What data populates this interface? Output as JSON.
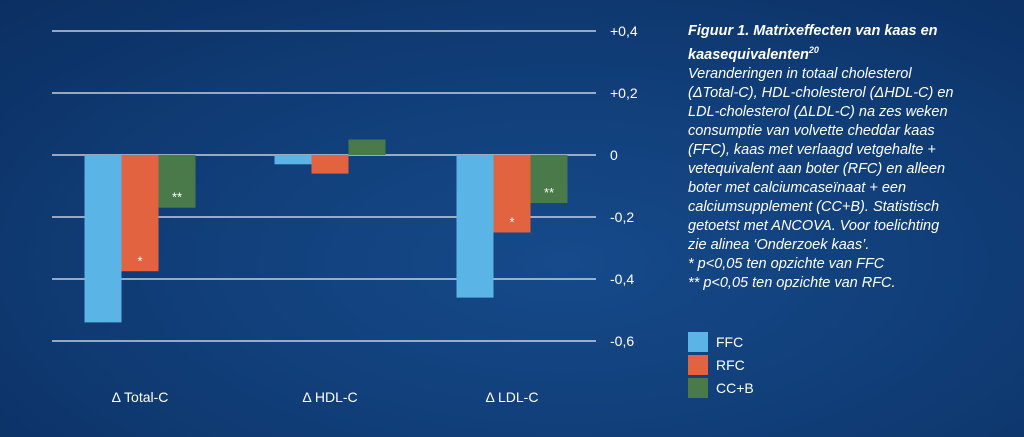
{
  "chart_data": {
    "type": "bar",
    "categories": [
      "Δ Total-C",
      "Δ HDL-C",
      "Δ LDL-C"
    ],
    "series": [
      {
        "name": "FFC",
        "color": "#5ab4e6",
        "values": [
          -0.54,
          -0.03,
          -0.46
        ],
        "annotations": [
          "",
          "",
          ""
        ]
      },
      {
        "name": "RFC",
        "color": "#e2633f",
        "values": [
          -0.375,
          -0.06,
          -0.25
        ],
        "annotations": [
          "*",
          "",
          "*"
        ]
      },
      {
        "name": "CC+B",
        "color": "#4a7a4a",
        "values": [
          -0.17,
          0.05,
          -0.155
        ],
        "annotations": [
          "**",
          "",
          "**"
        ]
      }
    ],
    "ylim": [
      -0.6,
      0.4
    ],
    "yticks": [
      0.4,
      0.2,
      0,
      -0.2,
      -0.4,
      -0.6
    ],
    "ytick_labels": [
      "+0,4",
      "+0,2",
      "0",
      "-0,2",
      "-0,4",
      "-0,6"
    ],
    "grid": true,
    "legend_position": "bottom-right"
  },
  "caption": {
    "title": "Figuur 1. Matrixeffecten van kaas en kaasequivalenten",
    "title_ref": "20",
    "body": "Veranderingen in totaal cholesterol\n (ΔTotal-C), HDL-cholesterol (ΔHDL-C) en\nLDL-cholesterol (ΔLDL-C) na zes weken\nconsumptie van volvette cheddar kaas\n(FFC), kaas met verlaagd vetgehalte +\nvetequivalent aan boter (RFC) en alleen\nboter met calciumcaseïnaat + een\ncalciumsupplement (CC+B). Statistisch\ngetoetst met ANCOVA. Voor toelichting\nzie alinea ‘Onderzoek kaas’.",
    "note1": "* p<0,05 ten opzichte van FFC",
    "note2": "** p<0,05 ten opzichte van RFC."
  }
}
